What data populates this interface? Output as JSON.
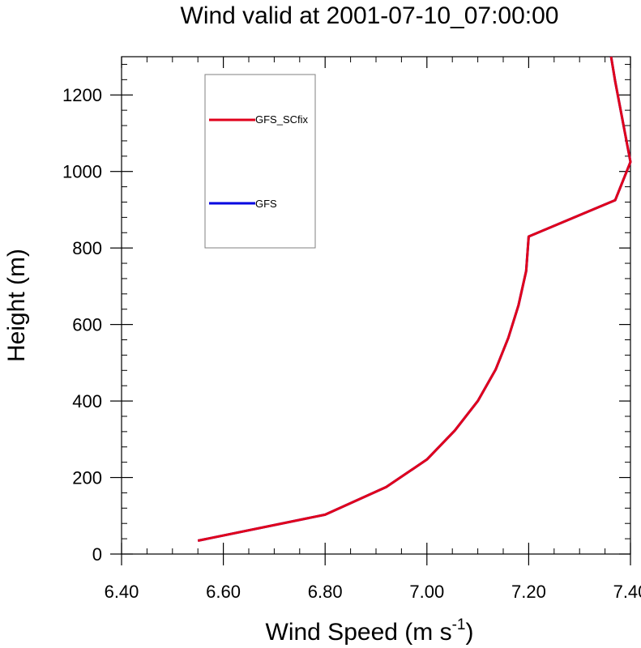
{
  "chart_data": {
    "type": "line",
    "title": "Wind valid at 2001-07-10_07:00:00",
    "xlabel_main": "Wind Speed (m s",
    "xlabel_sup": "-1",
    "xlabel_close": ")",
    "ylabel": "Height (m)",
    "xlim": [
      6.4,
      7.4
    ],
    "ylim": [
      0,
      1300
    ],
    "x_ticks": [
      6.4,
      6.6,
      6.8,
      7.0,
      7.2,
      7.4
    ],
    "x_tick_labels": [
      "6.40",
      "6.60",
      "6.80",
      "7.00",
      "7.20",
      "7.40"
    ],
    "y_ticks": [
      0,
      200,
      400,
      600,
      800,
      1000,
      1200
    ],
    "y_tick_labels": [
      "0",
      "200",
      "400",
      "600",
      "800",
      "1000",
      "1200"
    ],
    "grid": false,
    "legend_position": "top-left",
    "series": [
      {
        "name": "GFS_SCfix",
        "color": "#e0001b",
        "x": [
          6.55,
          6.8,
          6.92,
          7.0,
          7.055,
          7.1,
          7.135,
          7.16,
          7.18,
          7.195,
          7.2,
          7.37,
          7.4,
          7.385,
          7.37,
          7.362
        ],
        "y": [
          35,
          103,
          175,
          247,
          323,
          400,
          482,
          565,
          650,
          740,
          830,
          925,
          1025,
          1130,
          1235,
          1300
        ]
      },
      {
        "name": "GFS",
        "color": "#0000e0",
        "x": [
          6.55,
          6.8,
          6.92,
          7.0,
          7.055,
          7.1,
          7.135,
          7.16,
          7.18,
          7.195,
          7.2,
          7.37,
          7.4,
          7.385,
          7.37,
          7.362
        ],
        "y": [
          35,
          103,
          175,
          247,
          323,
          400,
          482,
          565,
          650,
          740,
          830,
          925,
          1025,
          1130,
          1235,
          1300
        ]
      }
    ]
  }
}
